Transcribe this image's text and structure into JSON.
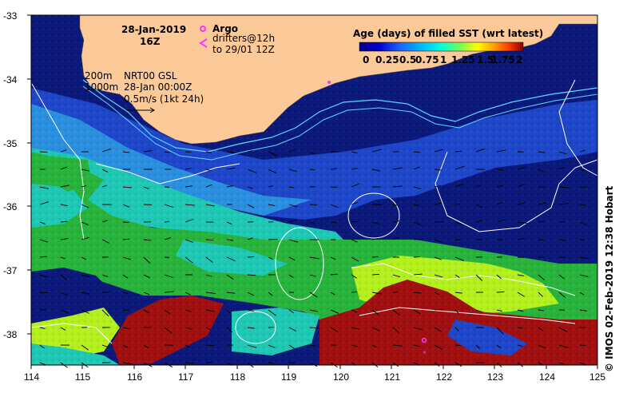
{
  "header": {
    "date": "28-Jan-2019",
    "time": "16Z"
  },
  "legend": {
    "argo_label": "Argo",
    "drifters_line1": "drifters@12h",
    "drifters_line2": "to 29/01 12Z",
    "argo_color": "#ff33ff",
    "drifter_color": "#ff33ff"
  },
  "annotations": {
    "depth_200": "200m",
    "depth_1000": "1000m",
    "product": "NRT00 GSL",
    "product_time": "28-Jan 00:00Z",
    "scale": "0.5m/s (1kt 24h)"
  },
  "colorbar": {
    "title": "Age (days) of filled SST (wrt latest)",
    "ticks": [
      "0",
      "0.25",
      "0.5",
      "0.75",
      "1",
      "1.25",
      "1.5",
      "1.75",
      "2"
    ],
    "colors": [
      "#00008b",
      "#0000cd",
      "#1e64ff",
      "#00b4ff",
      "#00ffdc",
      "#78ff50",
      "#ffff00",
      "#ffa000",
      "#ff3c00",
      "#8b0000"
    ]
  },
  "axes": {
    "x_ticks": [
      "114",
      "115",
      "116",
      "117",
      "118",
      "119",
      "120",
      "121",
      "122",
      "123",
      "124",
      "125"
    ],
    "y_ticks": [
      "-33",
      "-34",
      "-35",
      "-36",
      "-37",
      "-38"
    ]
  },
  "credit": "© IMOS 02-Feb-2019 12:38 Hobart",
  "colors": {
    "land": "#fcc998",
    "deep_navy": "#0b1a7a",
    "blue": "#1e46c8",
    "cyan_blue": "#2b8fe0",
    "teal": "#1ec8b4",
    "green": "#28b43c",
    "lime": "#b4f01e",
    "dark_red": "#a01010",
    "contour": "#ffffff",
    "isobath": "#5fd7ff"
  }
}
